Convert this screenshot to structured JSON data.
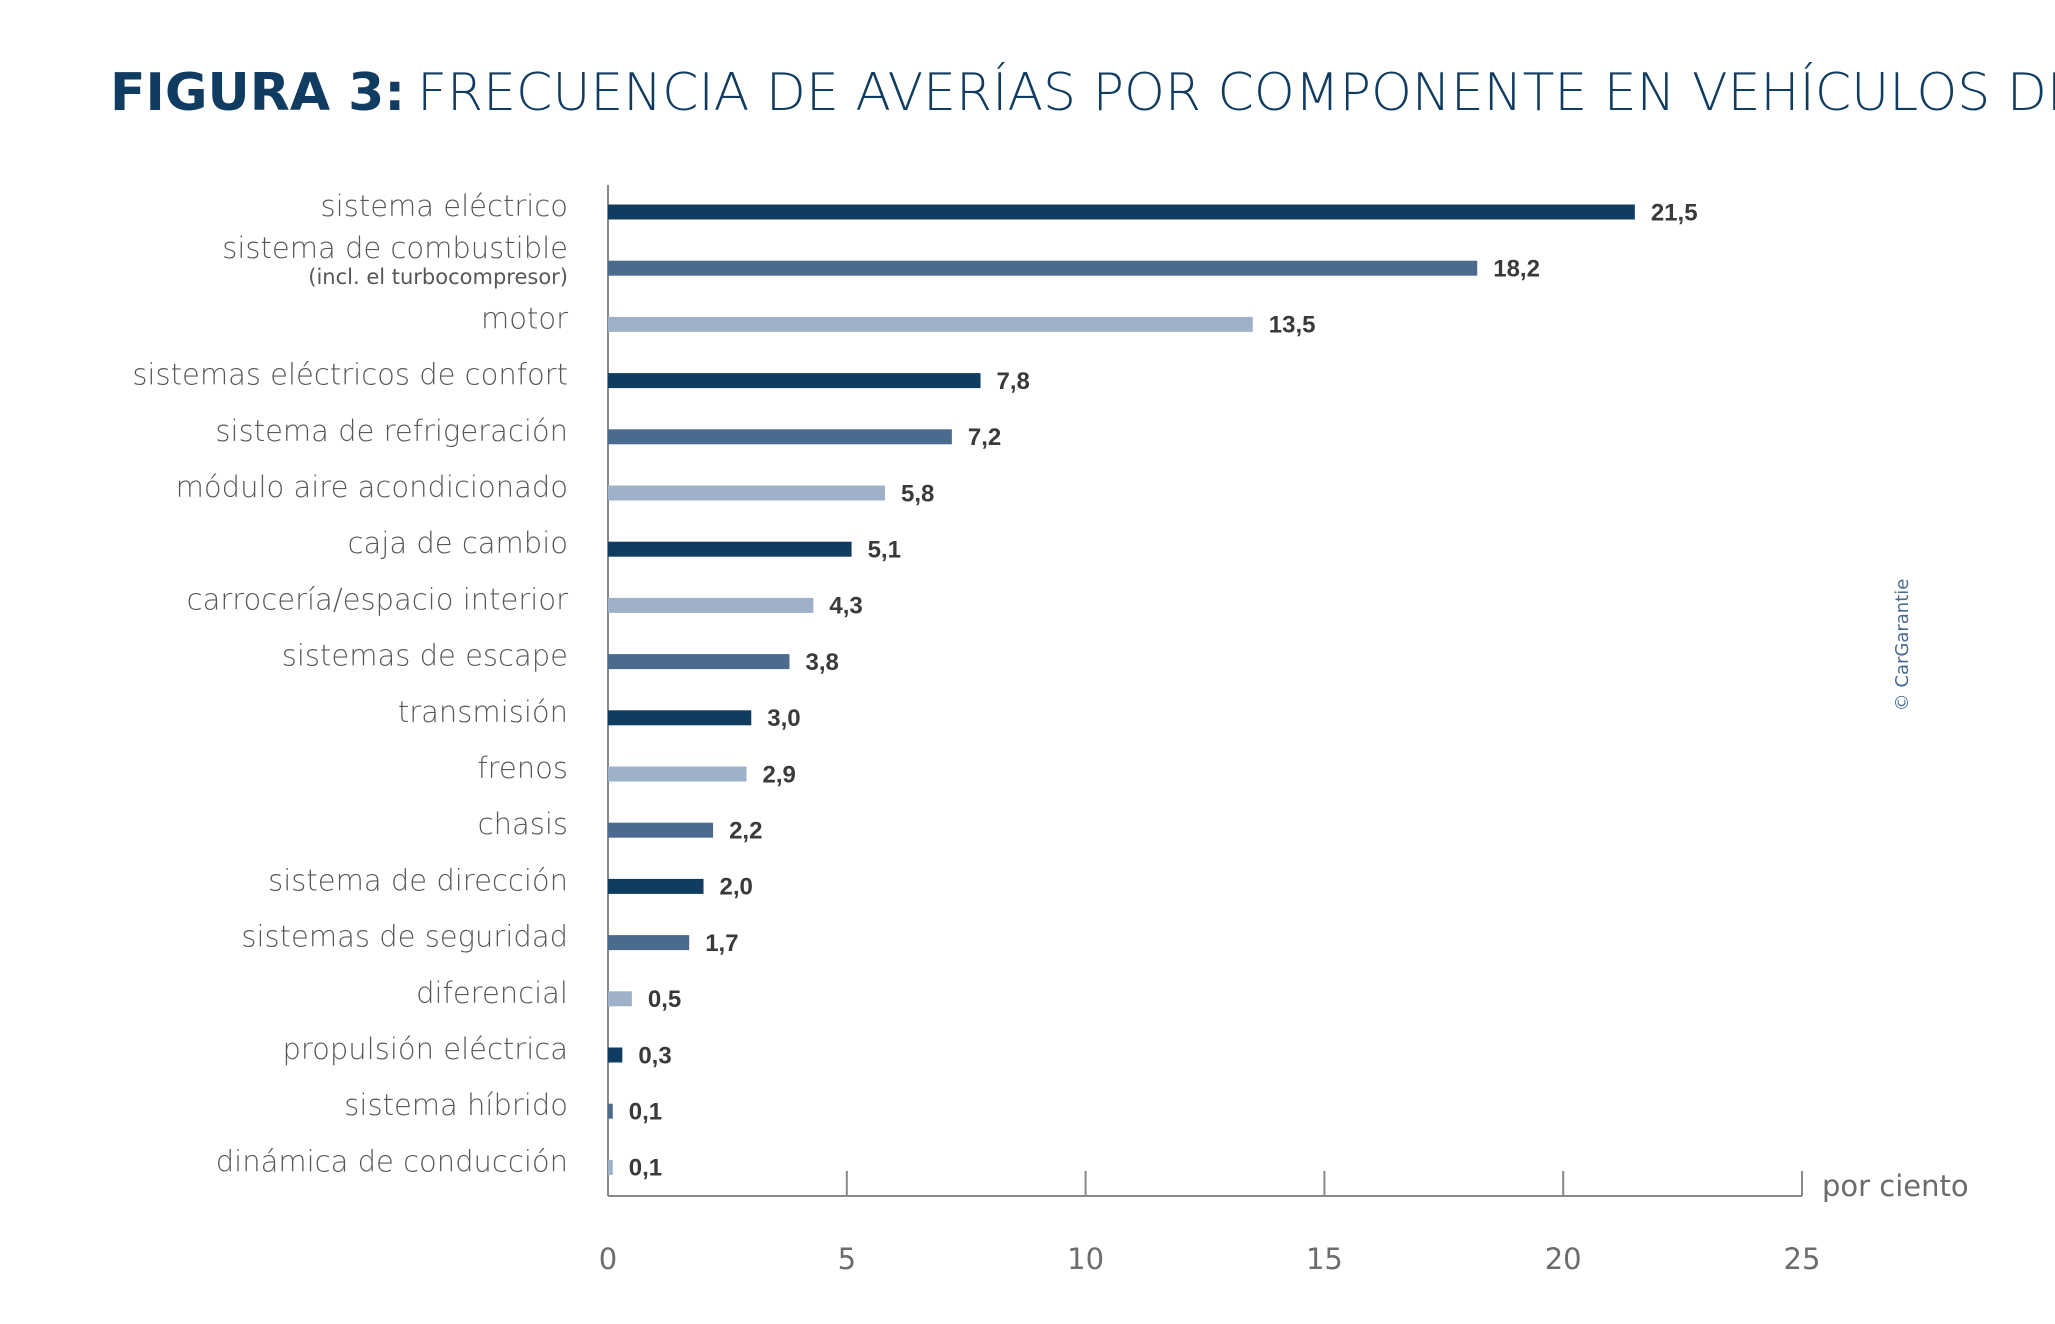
{
  "chart_data": {
    "type": "bar",
    "orientation": "horizontal",
    "title_prefix": "FIGURA 3:",
    "title": "FRECUENCIA DE AVERÍAS POR COMPONENTE EN VEHÍCULOS DE OCASIÓN",
    "x_label": "por ciento",
    "credit": "© CarGarantie",
    "categories": [
      "sistema eléctrico",
      "sistema de combustible",
      "motor",
      "sistemas eléctricos de confort",
      "sistema de refrigeración",
      "módulo aire acondicionado",
      "caja de cambio",
      "carrocería/espacio interior",
      "sistemas de escape",
      "transmisión",
      "frenos",
      "chasis",
      "sistema de dirección",
      "sistemas de seguridad",
      "diferencial",
      "propulsión eléctrica",
      "sistema híbrido",
      "dinámica de conducción"
    ],
    "category_sublabels": [
      null,
      "(incl. el turbocompresor)",
      null,
      null,
      null,
      null,
      null,
      null,
      null,
      null,
      null,
      null,
      null,
      null,
      null,
      null,
      null,
      null
    ],
    "values": [
      21.5,
      18.2,
      13.5,
      7.8,
      7.2,
      5.8,
      5.1,
      4.3,
      3.8,
      3.0,
      2.9,
      2.2,
      2.0,
      1.7,
      0.5,
      0.3,
      0.1,
      0.1
    ],
    "value_labels": [
      "21,5",
      "18,2",
      "13,5",
      "7,8",
      "7,2",
      "5,8",
      "5,1",
      "4,3",
      "3,8",
      "3,0",
      "2,9",
      "2,2",
      "2,0",
      "1,7",
      "0,5",
      "0,3",
      "0,1",
      "0,1"
    ],
    "colors": [
      "#113c61",
      "#4b6b8e",
      "#9fb0c9",
      "#113c61",
      "#4b6b8e",
      "#9fb0c9",
      "#113c61",
      "#9fb0c9",
      "#4b6b8e",
      "#113c61",
      "#9fb0c9",
      "#4b6b8e",
      "#113c61",
      "#4b6b8e",
      "#9fb0c9",
      "#113c61",
      "#4b6b8e",
      "#9fb0c9"
    ],
    "xlim": [
      0,
      25
    ],
    "xticks": [
      0,
      5,
      10,
      15,
      20,
      25
    ]
  }
}
